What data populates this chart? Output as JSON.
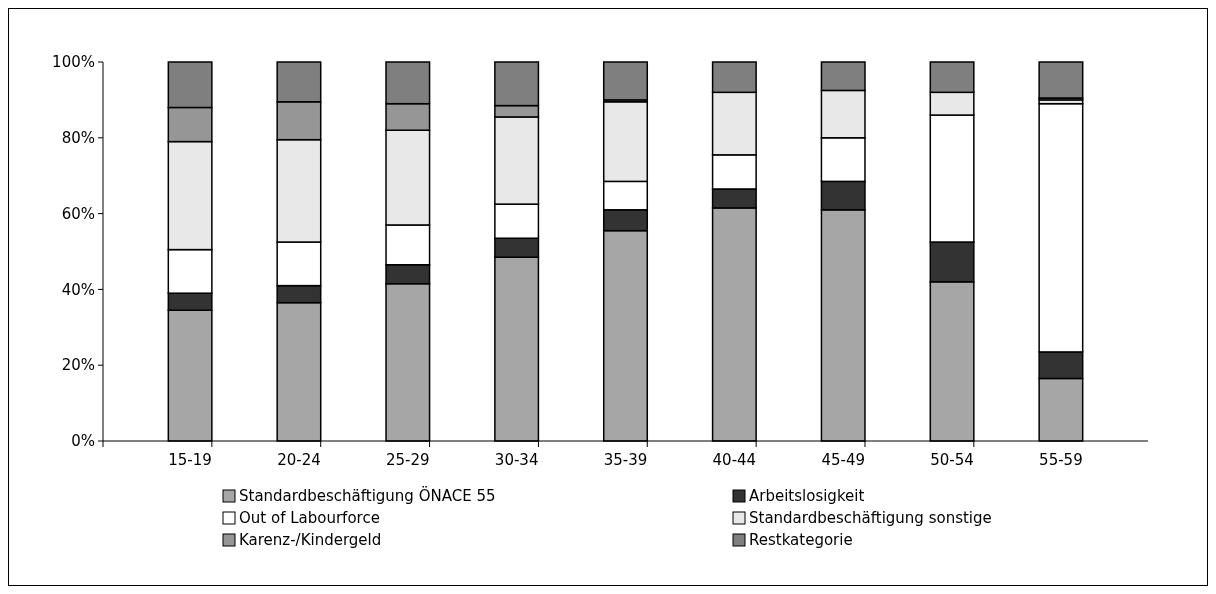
{
  "chart_data": {
    "type": "bar",
    "stacked": true,
    "categories": [
      "15-19",
      "20-24",
      "25-29",
      "30-34",
      "35-39",
      "40-44",
      "45-49",
      "50-54",
      "55-59"
    ],
    "series": [
      {
        "name": "Standardbeschäftigung ÖNACE 55",
        "color": "#a6a6a6",
        "values": [
          34.5,
          36.5,
          41.5,
          48.5,
          55.5,
          61.5,
          61,
          42,
          16.5
        ]
      },
      {
        "name": "Arbeitslosigkeit",
        "color": "#333333",
        "values": [
          4.5,
          4.5,
          5,
          5,
          5.5,
          5,
          7.5,
          10.5,
          7
        ]
      },
      {
        "name": "Out of Labourforce",
        "color": "#ffffff",
        "values": [
          11.5,
          11.5,
          10.5,
          9,
          7.5,
          9,
          11.5,
          33.5,
          65.5
        ]
      },
      {
        "name": "Standardbeschäftigung sonstige",
        "color": "#e8e8e8",
        "values": [
          28.5,
          27,
          25,
          23,
          21,
          16.5,
          12.5,
          6,
          1
        ]
      },
      {
        "name": "Karenz-/Kindergeld",
        "color": "#969696",
        "values": [
          9,
          10,
          7,
          3,
          0.5,
          0,
          0,
          0,
          0.5
        ]
      },
      {
        "name": "Restkategorie",
        "color": "#7f7f7f",
        "values": [
          12,
          10.5,
          11,
          11.5,
          10,
          8,
          7.5,
          8,
          9.5
        ]
      }
    ],
    "ylim": [
      0,
      100
    ],
    "yticks": [
      {
        "value": 0,
        "label": "0%"
      },
      {
        "value": 20,
        "label": "20%"
      },
      {
        "value": 40,
        "label": "40%"
      },
      {
        "value": 60,
        "label": "60%"
      },
      {
        "value": 80,
        "label": "80%"
      },
      {
        "value": 100,
        "label": "100%"
      }
    ],
    "grid": false,
    "legend": "bottom"
  }
}
